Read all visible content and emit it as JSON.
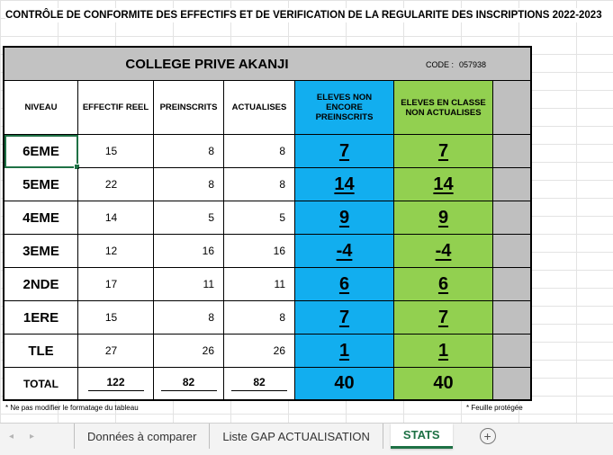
{
  "title": "CONTRÔLE DE CONFORMITE DES EFFECTIFS ET DE VERIFICATION DE LA REGULARITE DES INSCRIPTIONS 2022-2023",
  "school": "COLLEGE PRIVE AKANJI",
  "code_label": "CODE :",
  "code_value": "057938",
  "headers": [
    "NIVEAU",
    "EFFECTIF REEL",
    "PREINSCRITS",
    "ACTUALISES",
    "ELEVES NON ENCORE PREINSCRITS",
    "ELEVES EN CLASSE NON ACTUALISES"
  ],
  "rows": [
    {
      "level": "6EME",
      "reel": "15",
      "preinscrits": "8",
      "actualises": "8",
      "non_preinscrits": "7",
      "non_actualises": "7"
    },
    {
      "level": "5EME",
      "reel": "22",
      "preinscrits": "8",
      "actualises": "8",
      "non_preinscrits": "14",
      "non_actualises": "14"
    },
    {
      "level": "4EME",
      "reel": "14",
      "preinscrits": "5",
      "actualises": "5",
      "non_preinscrits": "9",
      "non_actualises": "9"
    },
    {
      "level": "3EME",
      "reel": "12",
      "preinscrits": "16",
      "actualises": "16",
      "non_preinscrits": "-4",
      "non_actualises": "-4"
    },
    {
      "level": "2NDE",
      "reel": "17",
      "preinscrits": "11",
      "actualises": "11",
      "non_preinscrits": "6",
      "non_actualises": "6"
    },
    {
      "level": "1ERE",
      "reel": "15",
      "preinscrits": "8",
      "actualises": "8",
      "non_preinscrits": "7",
      "non_actualises": "7"
    },
    {
      "level": "TLE",
      "reel": "27",
      "preinscrits": "26",
      "actualises": "26",
      "non_preinscrits": "1",
      "non_actualises": "1"
    }
  ],
  "total": {
    "label": "TOTAL",
    "reel": "122",
    "preinscrits": "82",
    "actualises": "82",
    "non_preinscrits": "40",
    "non_actualises": "40"
  },
  "note_left": "* Ne pas modifier le formatage du tableau",
  "note_right": "* Feuille protégée",
  "tabs": {
    "prev_icon": "◂",
    "next_icon": "▸",
    "items": [
      "Données à comparer",
      "Liste GAP ACTUALISATION",
      "STATS"
    ],
    "add_icon": "+"
  },
  "colors": {
    "blue_column": "#12aeef",
    "green_column": "#92d050",
    "header_grey": "#c2c2c2",
    "active_tab": "#1e7145"
  }
}
